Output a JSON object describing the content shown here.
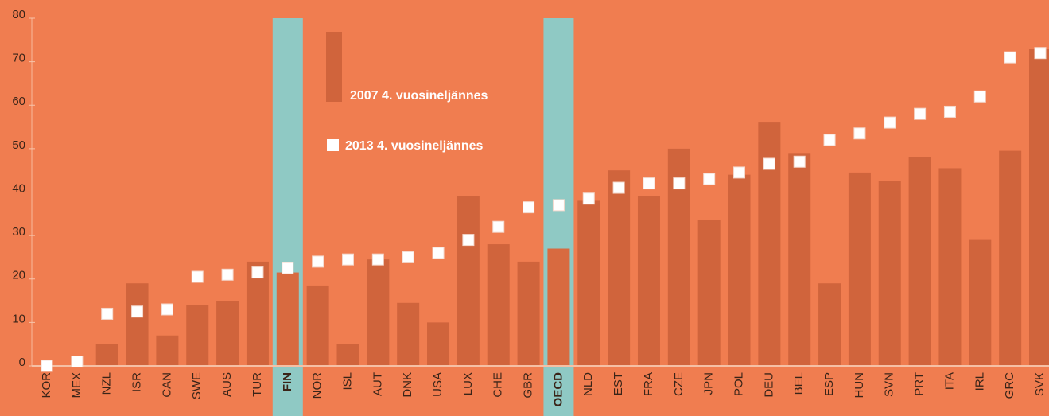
{
  "chart_data": {
    "type": "bar_marker",
    "categories": [
      "KOR",
      "MEX",
      "NZL",
      "ISR",
      "CAN",
      "SWE",
      "AUS",
      "TUR",
      "FIN",
      "NOR",
      "ISL",
      "AUT",
      "DNK",
      "USA",
      "LUX",
      "CHE",
      "GBR",
      "OECD",
      "NLD",
      "EST",
      "FRA",
      "CZE",
      "JPN",
      "POL",
      "DEU",
      "BEL",
      "ESP",
      "HUN",
      "SVN",
      "PRT",
      "ITA",
      "IRL",
      "GRC",
      "SVK"
    ],
    "highlight": [
      "FIN",
      "OECD"
    ],
    "series": [
      {
        "name": "2007 4. vuosineljännes",
        "color": "#d0643c",
        "values": [
          0,
          0,
          5,
          19,
          7,
          14,
          15,
          24,
          21.5,
          18.5,
          5,
          24.5,
          14.5,
          10,
          39,
          28,
          24,
          27,
          38,
          45,
          39,
          50,
          33.5,
          44,
          56,
          49,
          19,
          44.5,
          42.5,
          48,
          45.5,
          29,
          49.5,
          73
        ]
      },
      {
        "name": "2013 4. vuosineljännes",
        "color": "#ffffff",
        "values": [
          0,
          1,
          12,
          12.5,
          13,
          20.5,
          21,
          21.5,
          22.5,
          24,
          24.5,
          24.5,
          25,
          26,
          29,
          32,
          36.5,
          37,
          38.5,
          41,
          42,
          42,
          43,
          44.5,
          46.5,
          47,
          52,
          53.5,
          56,
          58,
          58.5,
          62,
          71,
          72
        ]
      }
    ],
    "ylim": [
      0,
      80
    ],
    "yticks": [
      0,
      10,
      20,
      30,
      40,
      50,
      60,
      70,
      80
    ]
  }
}
